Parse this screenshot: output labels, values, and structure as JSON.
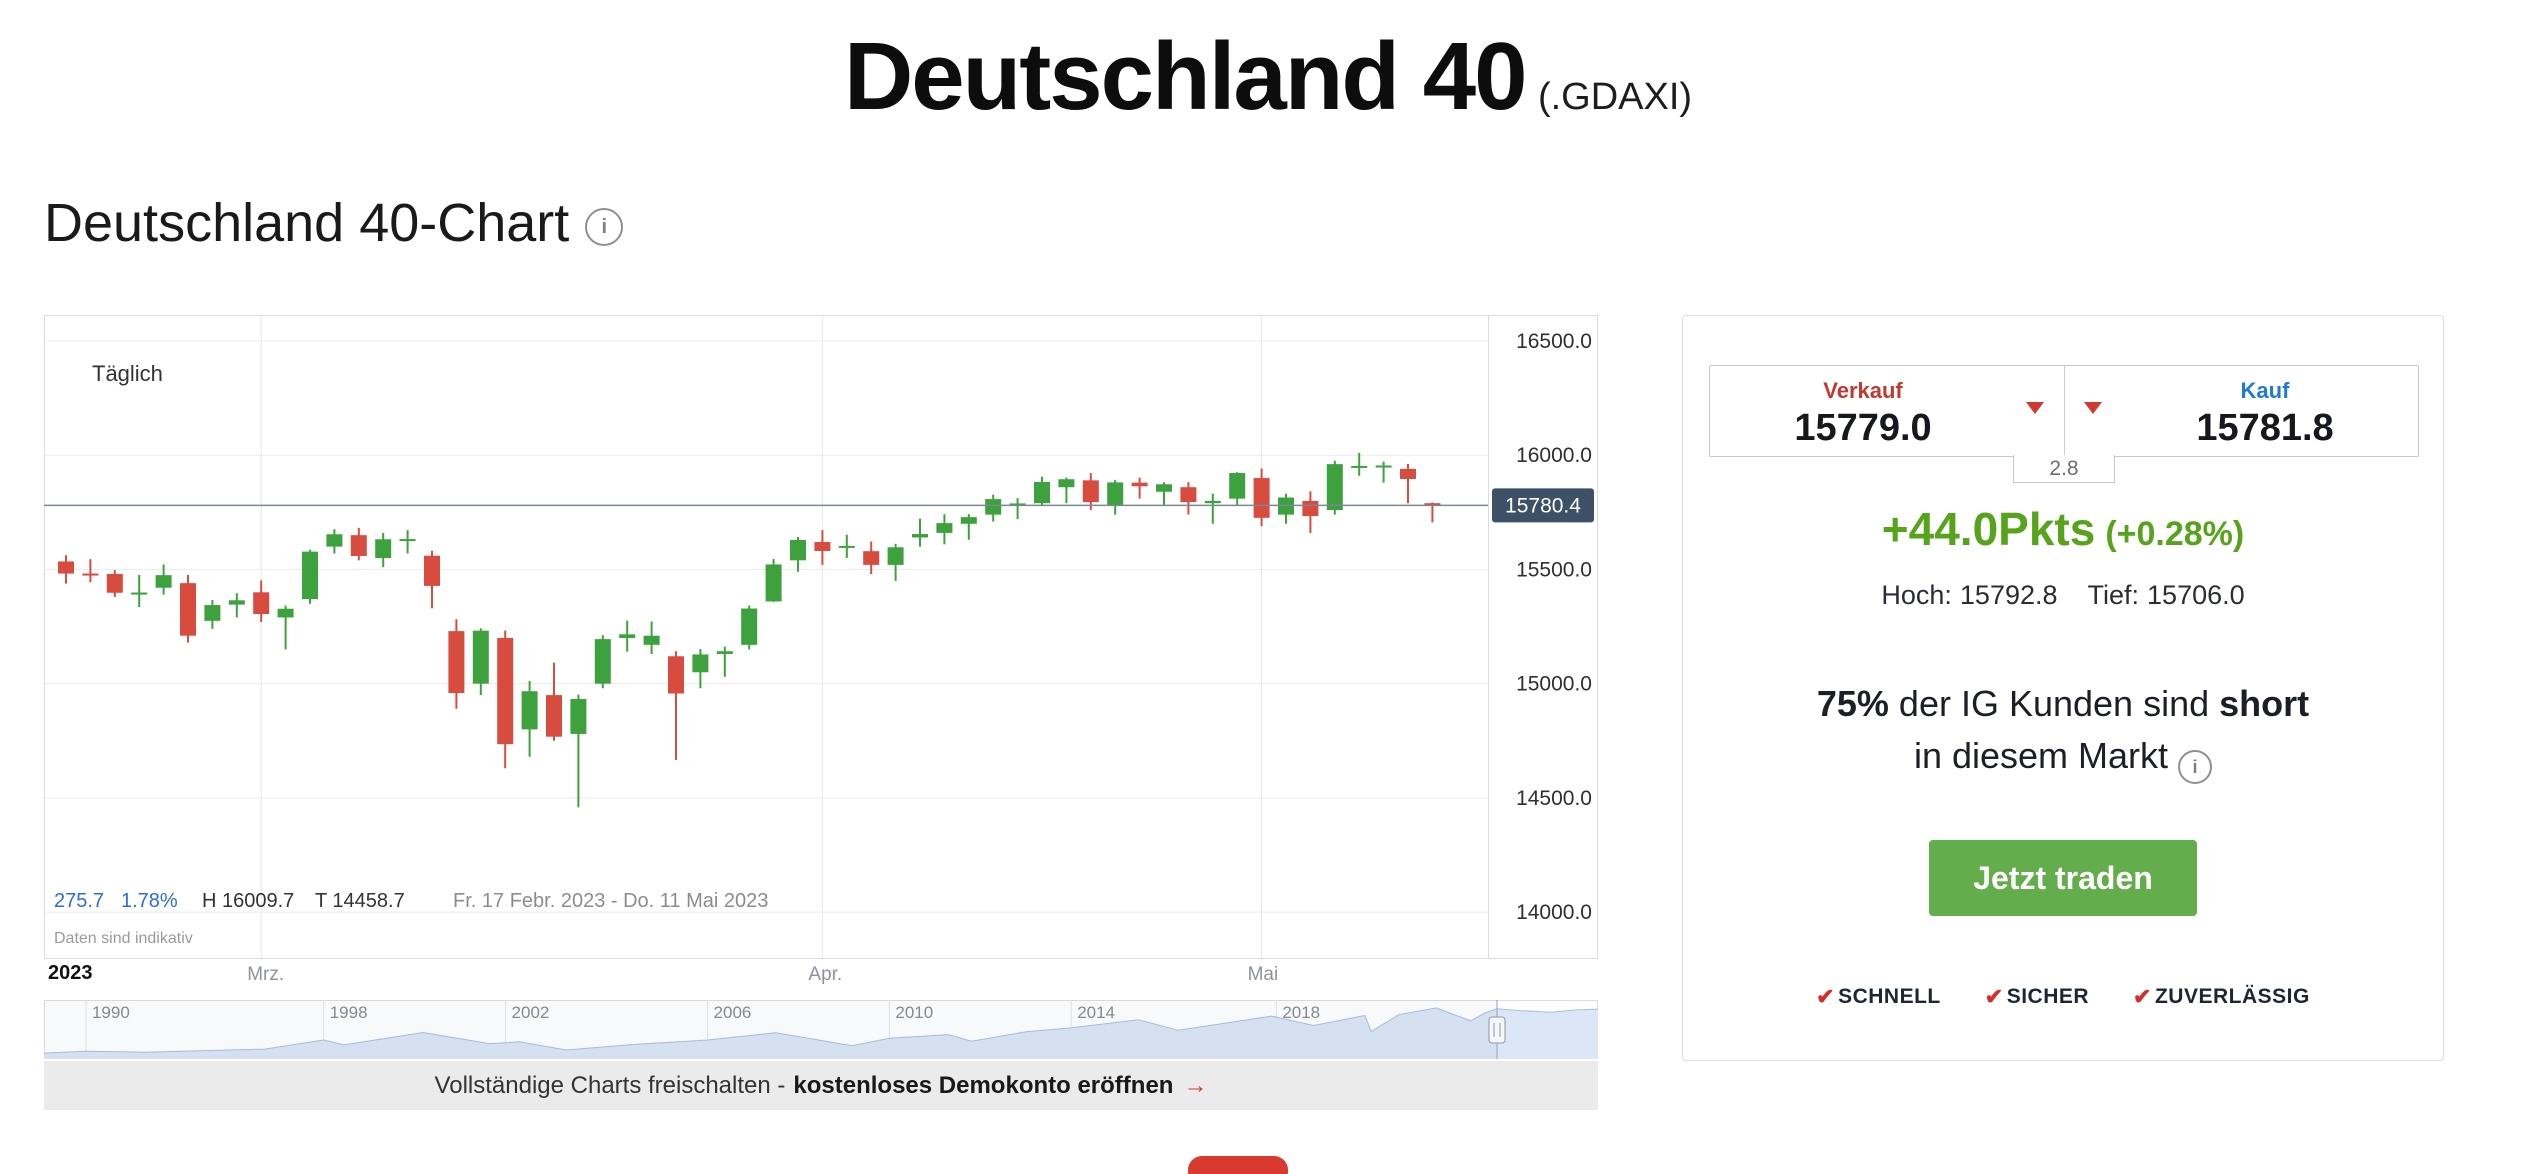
{
  "page": {
    "title": "Deutschland 40",
    "title_suffix": "(.GDAXI)",
    "section_heading": "Deutschland 40-Chart"
  },
  "icons": {
    "info": "i",
    "check": "✔",
    "arrow": "→"
  },
  "chart": {
    "interval_label": "Täglich",
    "price_badge": "15780.4",
    "stats": {
      "change": "275.7",
      "change_pct": "1.78%",
      "high_label": "H",
      "high": "16009.7",
      "low_label": "T",
      "low": "14458.7",
      "range": "Fr. 17 Febr. 2023 - Do. 11 Mai 2023"
    },
    "disclaimer": "Daten sind indikativ",
    "x_year": "2023",
    "banner": {
      "text": "Vollständige Charts freischalten -",
      "bold": "kostenloses Demokonto eröffnen",
      "arrow": "→"
    }
  },
  "chart_data": {
    "type": "candlestick",
    "title": "Deutschland 40 Täglich",
    "ylim": [
      13900,
      16600
    ],
    "yticks": [
      16500,
      16000,
      15500,
      15000,
      14500,
      14000
    ],
    "ytick_labels": [
      "16500.0",
      "16000.0",
      "15500.0",
      "15000.0",
      "14500.0",
      "14000.0"
    ],
    "current_price": 15780.4,
    "period_high": 16009.7,
    "period_low": 14458.7,
    "colors": {
      "up": "#3da23d",
      "down": "#d84b3f",
      "price_line": "#7a8896",
      "badge_bg": "#3d5166",
      "nav_fill": "#dbe6f6",
      "nav_line": "#a8bfe3"
    },
    "months": [
      {
        "label": "Mrz.",
        "index": 8
      },
      {
        "label": "Apr.",
        "index": 31
      },
      {
        "label": "Mai",
        "index": 49
      }
    ],
    "candles": [
      [
        "17.02",
        15535,
        15562,
        15438,
        15482
      ],
      [
        "20.02",
        15482,
        15545,
        15444,
        15477
      ],
      [
        "21.02",
        15480,
        15497,
        15380,
        15398
      ],
      [
        "22.02",
        15390,
        15476,
        15335,
        15399
      ],
      [
        "23.02",
        15420,
        15522,
        15390,
        15475
      ],
      [
        "24.02",
        15440,
        15476,
        15180,
        15210
      ],
      [
        "27.02",
        15275,
        15366,
        15240,
        15344
      ],
      [
        "28.02",
        15346,
        15396,
        15290,
        15365
      ],
      [
        "01.03",
        15400,
        15452,
        15270,
        15305
      ],
      [
        "02.03",
        15290,
        15342,
        15150,
        15328
      ],
      [
        "03.03",
        15370,
        15586,
        15350,
        15578
      ],
      [
        "06.03",
        15600,
        15676,
        15570,
        15654
      ],
      [
        "07.03",
        15650,
        15682,
        15540,
        15559
      ],
      [
        "08.03",
        15550,
        15660,
        15510,
        15632
      ],
      [
        "09.03",
        15630,
        15672,
        15570,
        15633
      ],
      [
        "10.03",
        15560,
        15582,
        15330,
        15428
      ],
      [
        "13.03",
        15230,
        15282,
        14890,
        14959
      ],
      [
        "14.03",
        15000,
        15242,
        14950,
        15232
      ],
      [
        "15.03",
        15200,
        15232,
        14630,
        14735
      ],
      [
        "16.03",
        14800,
        15012,
        14680,
        14967
      ],
      [
        "17.03",
        14950,
        15092,
        14750,
        14768
      ],
      [
        "20.03",
        14780,
        14952,
        14458.7,
        14933
      ],
      [
        "21.03",
        15000,
        15212,
        14980,
        15195
      ],
      [
        "22.03",
        15200,
        15276,
        15140,
        15216
      ],
      [
        "23.03",
        15170,
        15272,
        15130,
        15210
      ],
      [
        "24.03",
        15120,
        15142,
        14666,
        14957
      ],
      [
        "27.03",
        15050,
        15152,
        14980,
        15128
      ],
      [
        "28.03",
        15130,
        15162,
        15030,
        15142
      ],
      [
        "29.03",
        15170,
        15342,
        15150,
        15329
      ],
      [
        "30.03",
        15360,
        15546,
        15358,
        15522
      ],
      [
        "31.03",
        15540,
        15642,
        15490,
        15629
      ],
      [
        "03.04",
        15620,
        15672,
        15520,
        15581
      ],
      [
        "04.04",
        15600,
        15652,
        15550,
        15603
      ],
      [
        "05.04",
        15580,
        15622,
        15480,
        15520
      ],
      [
        "06.04",
        15520,
        15612,
        15450,
        15597
      ],
      [
        "11.04",
        15640,
        15722,
        15600,
        15655
      ],
      [
        "12.04",
        15660,
        15742,
        15610,
        15703
      ],
      [
        "13.04",
        15700,
        15742,
        15630,
        15729
      ],
      [
        "14.04",
        15740,
        15827,
        15710,
        15808
      ],
      [
        "17.04",
        15780,
        15812,
        15720,
        15789
      ],
      [
        "18.04",
        15790,
        15906,
        15778,
        15883
      ],
      [
        "19.04",
        15860,
        15902,
        15790,
        15895
      ],
      [
        "20.04",
        15890,
        15922,
        15760,
        15795
      ],
      [
        "21.04",
        15780,
        15892,
        15740,
        15881
      ],
      [
        "24.04",
        15880,
        15902,
        15810,
        15864
      ],
      [
        "25.04",
        15840,
        15882,
        15780,
        15873
      ],
      [
        "26.04",
        15860,
        15882,
        15740,
        15795
      ],
      [
        "27.04",
        15790,
        15832,
        15700,
        15800
      ],
      [
        "28.04",
        15810,
        15926,
        15780,
        15922
      ],
      [
        "02.05",
        15900,
        15942,
        15690,
        15726
      ],
      [
        "03.05",
        15740,
        15832,
        15700,
        15815
      ],
      [
        "04.05",
        15800,
        15842,
        15660,
        15734
      ],
      [
        "05.05",
        15760,
        15976,
        15740,
        15961
      ],
      [
        "08.05",
        15950,
        16009.7,
        15910,
        15953
      ],
      [
        "09.05",
        15948,
        15972,
        15880,
        15955
      ],
      [
        "10.05",
        15940,
        15962,
        15790,
        15896
      ],
      [
        "11.05",
        15790,
        15792.8,
        15706,
        15780.4
      ]
    ],
    "navigator": {
      "type": "area",
      "handle_f": 0.935,
      "year_labels": [
        {
          "label": "1990",
          "f": 0.027
        },
        {
          "label": "1998",
          "f": 0.18
        },
        {
          "label": "2002",
          "f": 0.297
        },
        {
          "label": "2006",
          "f": 0.427
        },
        {
          "label": "2010",
          "f": 0.544
        },
        {
          "label": "2014",
          "f": 0.661
        },
        {
          "label": "2018",
          "f": 0.793
        }
      ],
      "points": [
        [
          0,
          1300
        ],
        [
          0.027,
          1900
        ],
        [
          0.065,
          1600
        ],
        [
          0.103,
          2100
        ],
        [
          0.142,
          2600
        ],
        [
          0.18,
          5600
        ],
        [
          0.193,
          4000
        ],
        [
          0.244,
          8100
        ],
        [
          0.287,
          4400
        ],
        [
          0.306,
          5000
        ],
        [
          0.336,
          2300
        ],
        [
          0.378,
          4100
        ],
        [
          0.427,
          5600
        ],
        [
          0.471,
          8000
        ],
        [
          0.52,
          3700
        ],
        [
          0.544,
          6200
        ],
        [
          0.582,
          7400
        ],
        [
          0.597,
          5200
        ],
        [
          0.632,
          8300
        ],
        [
          0.661,
          9600
        ],
        [
          0.704,
          12300
        ],
        [
          0.73,
          8800
        ],
        [
          0.79,
          13500
        ],
        [
          0.817,
          10400
        ],
        [
          0.85,
          13700
        ],
        [
          0.854,
          8400
        ],
        [
          0.872,
          14000
        ],
        [
          0.896,
          16200
        ],
        [
          0.918,
          11900
        ],
        [
          0.927,
          14500
        ],
        [
          0.935,
          15900
        ],
        [
          0.95,
          15300
        ],
        [
          0.97,
          14800
        ],
        [
          0.985,
          15500
        ],
        [
          1,
          15800
        ]
      ]
    }
  },
  "panel": {
    "sell_label": "Verkauf",
    "sell_price": "15779.0",
    "buy_label": "Kauf",
    "buy_price": "15781.8",
    "spread": "2.8",
    "change": "+44.0Pkts",
    "change_pct": "(+0.28%)",
    "high_label": "Hoch:",
    "high": "15792.8",
    "low_label": "Tief:",
    "low": "15706.0",
    "sentiment": {
      "pct": "75%",
      "mid": " der IG Kunden sind ",
      "bold": "short",
      "line2": "in diesem Markt"
    },
    "cta": "Jetzt traden",
    "badges": [
      "SCHNELL",
      "SICHER",
      "ZUVERLÄSSIG"
    ]
  }
}
